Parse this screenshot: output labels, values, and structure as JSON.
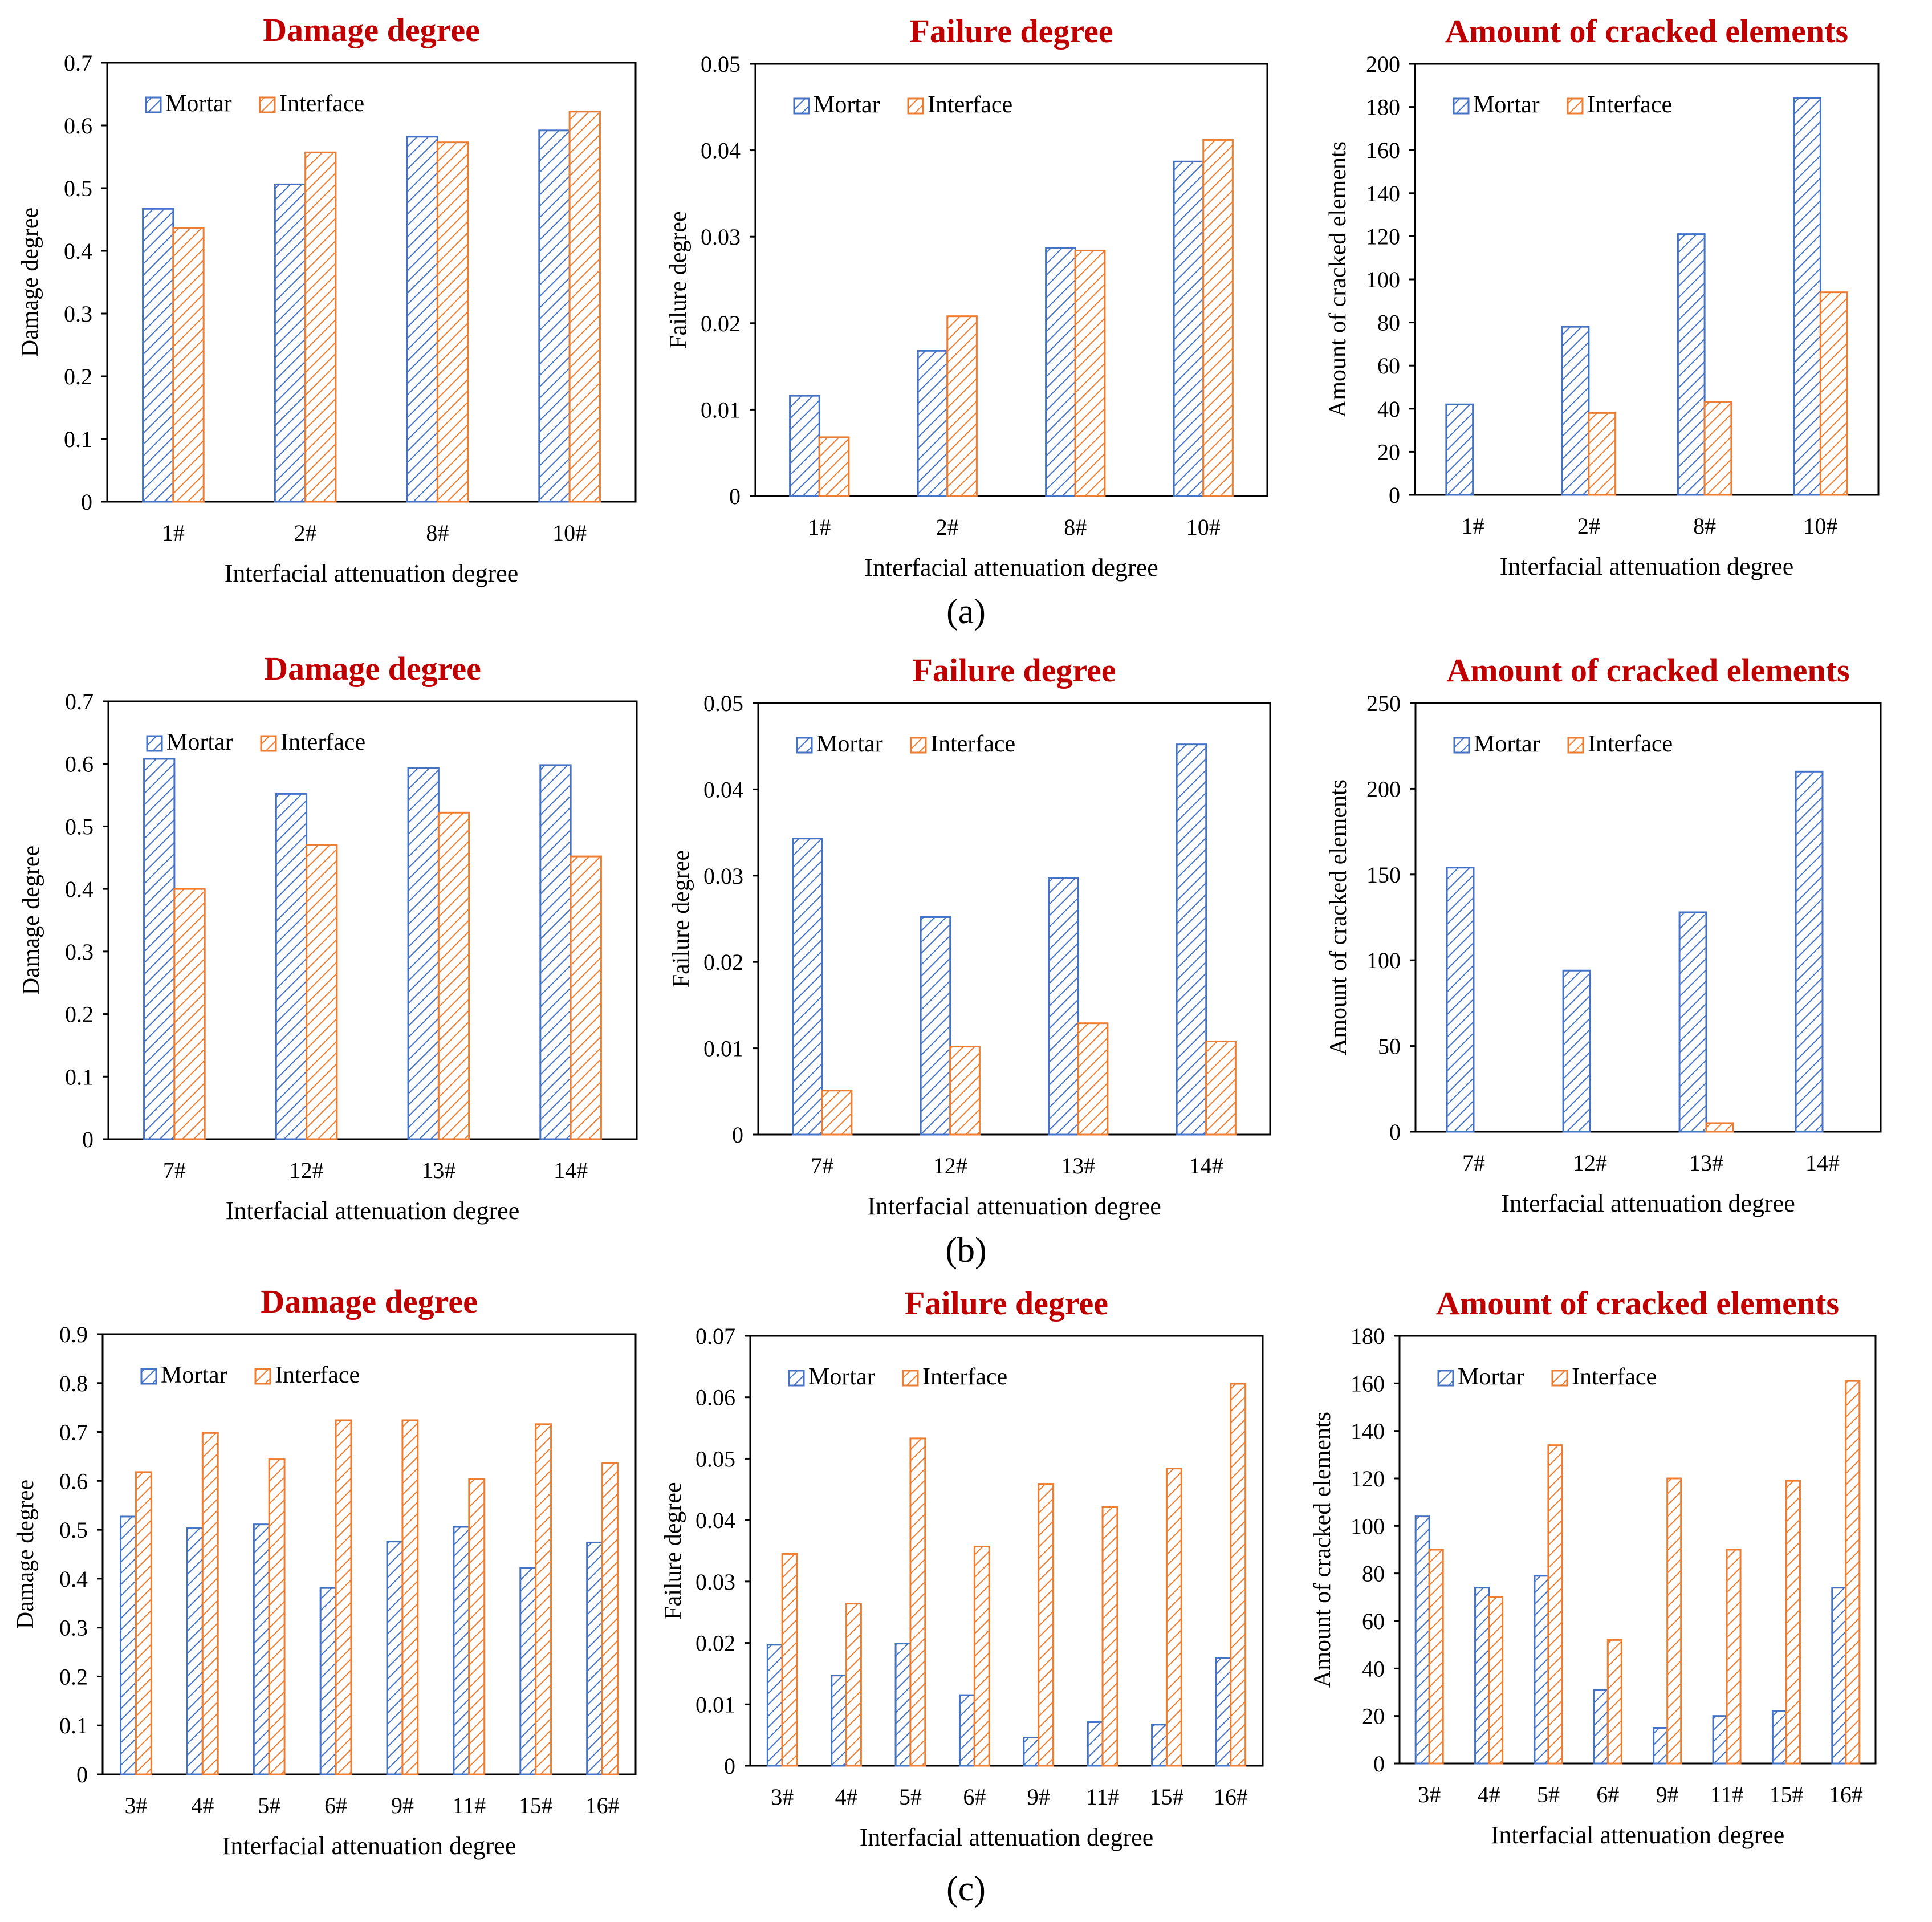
{
  "colors": {
    "mortar": "#4472C4",
    "interface": "#ED7D31",
    "title": "#C00000",
    "axis": "#000000"
  },
  "figure": {
    "rows": [
      {
        "label": "(a)",
        "charts": [
          0,
          1,
          2
        ]
      },
      {
        "label": "(b)",
        "charts": [
          3,
          4,
          5
        ]
      },
      {
        "label": "(c)",
        "charts": [
          6,
          7,
          8
        ]
      }
    ]
  },
  "chart_data": [
    {
      "type": "bar",
      "title": "Damage degree",
      "xlabel": "Interfacial attenuation degree",
      "ylabel": "Damage degree",
      "categories": [
        "1#",
        "2#",
        "8#",
        "10#"
      ],
      "ylim": [
        0,
        0.7
      ],
      "yticks": [
        "0",
        "0.1",
        "0.2",
        "0.3",
        "0.4",
        "0.5",
        "0.6",
        "0.7"
      ],
      "legend": "top-left",
      "series": [
        {
          "name": "Mortar",
          "values": [
            0.467,
            0.506,
            0.582,
            0.592
          ]
        },
        {
          "name": "Interface",
          "values": [
            0.436,
            0.557,
            0.573,
            0.622
          ]
        }
      ]
    },
    {
      "type": "bar",
      "title": "Failure degree",
      "xlabel": "Interfacial attenuation degree",
      "ylabel": "Failure degree",
      "categories": [
        "1#",
        "2#",
        "8#",
        "10#"
      ],
      "ylim": [
        0,
        0.05
      ],
      "yticks": [
        "0",
        "0.01",
        "0.02",
        "0.03",
        "0.04",
        "0.05"
      ],
      "legend": "top-left",
      "series": [
        {
          "name": "Mortar",
          "values": [
            0.0116,
            0.0168,
            0.0287,
            0.0387
          ]
        },
        {
          "name": "Interface",
          "values": [
            0.0068,
            0.0208,
            0.0284,
            0.0412
          ]
        }
      ]
    },
    {
      "type": "bar",
      "title": "Amount of cracked elements",
      "xlabel": "Interfacial attenuation degree",
      "ylabel": "Amount of cracked elements",
      "categories": [
        "1#",
        "2#",
        "8#",
        "10#"
      ],
      "ylim": [
        0,
        200
      ],
      "yticks": [
        "0",
        "20",
        "40",
        "60",
        "80",
        "100",
        "120",
        "140",
        "160",
        "180",
        "200"
      ],
      "legend": "top-left",
      "series": [
        {
          "name": "Mortar",
          "values": [
            42,
            78,
            121,
            184
          ]
        },
        {
          "name": "Interface",
          "values": [
            0,
            38,
            43,
            94
          ]
        }
      ]
    },
    {
      "type": "bar",
      "title": "Damage degree",
      "xlabel": "Interfacial attenuation degree",
      "ylabel": "Damage degree",
      "categories": [
        "7#",
        "12#",
        "13#",
        "14#"
      ],
      "ylim": [
        0,
        0.7
      ],
      "yticks": [
        "0",
        "0.1",
        "0.2",
        "0.3",
        "0.4",
        "0.5",
        "0.6",
        "0.7"
      ],
      "legend": "top-left",
      "series": [
        {
          "name": "Mortar",
          "values": [
            0.608,
            0.552,
            0.593,
            0.598
          ]
        },
        {
          "name": "Interface",
          "values": [
            0.4,
            0.47,
            0.522,
            0.452
          ]
        }
      ]
    },
    {
      "type": "bar",
      "title": "Failure degree",
      "xlabel": "Interfacial attenuation degree",
      "ylabel": "Failure degree",
      "categories": [
        "7#",
        "12#",
        "13#",
        "14#"
      ],
      "ylim": [
        0,
        0.05
      ],
      "yticks": [
        "0",
        "0.01",
        "0.02",
        "0.03",
        "0.04",
        "0.05"
      ],
      "legend": "top-left",
      "series": [
        {
          "name": "Mortar",
          "values": [
            0.0343,
            0.0252,
            0.0297,
            0.0452
          ]
        },
        {
          "name": "Interface",
          "values": [
            0.0051,
            0.0102,
            0.0129,
            0.0108
          ]
        }
      ]
    },
    {
      "type": "bar",
      "title": "Amount of cracked elements",
      "xlabel": "Interfacial attenuation degree",
      "ylabel": "Amount of cracked elements",
      "categories": [
        "7#",
        "12#",
        "13#",
        "14#"
      ],
      "ylim": [
        0,
        250
      ],
      "yticks": [
        "0",
        "50",
        "100",
        "150",
        "200",
        "250"
      ],
      "legend": "top-left",
      "series": [
        {
          "name": "Mortar",
          "values": [
            154,
            94,
            128,
            210
          ]
        },
        {
          "name": "Interface",
          "values": [
            0,
            0,
            5,
            0
          ]
        }
      ]
    },
    {
      "type": "bar",
      "title": "Damage degree",
      "xlabel": "Interfacial attenuation degree",
      "ylabel": "Damage degree",
      "categories": [
        "3#",
        "4#",
        "5#",
        "6#",
        "9#",
        "11#",
        "15#",
        "16#"
      ],
      "ylim": [
        0,
        0.9
      ],
      "yticks": [
        "0",
        "0.1",
        "0.2",
        "0.3",
        "0.4",
        "0.5",
        "0.6",
        "0.7",
        "0.8",
        "0.9"
      ],
      "legend": "top-left",
      "series": [
        {
          "name": "Mortar",
          "values": [
            0.527,
            0.503,
            0.511,
            0.381,
            0.476,
            0.506,
            0.422,
            0.474
          ]
        },
        {
          "name": "Interface",
          "values": [
            0.618,
            0.698,
            0.644,
            0.724,
            0.724,
            0.604,
            0.716,
            0.636
          ]
        }
      ]
    },
    {
      "type": "bar",
      "title": "Failure degree",
      "xlabel": "Interfacial attenuation degree",
      "ylabel": "Failure degree",
      "categories": [
        "3#",
        "4#",
        "5#",
        "6#",
        "9#",
        "11#",
        "15#",
        "16#"
      ],
      "ylim": [
        0,
        0.07
      ],
      "yticks": [
        "0",
        "0.01",
        "0.02",
        "0.03",
        "0.04",
        "0.05",
        "0.06",
        "0.07"
      ],
      "legend": "top-left",
      "series": [
        {
          "name": "Mortar",
          "values": [
            0.0197,
            0.0147,
            0.0199,
            0.0115,
            0.0046,
            0.0071,
            0.0067,
            0.0175
          ]
        },
        {
          "name": "Interface",
          "values": [
            0.0345,
            0.0264,
            0.0533,
            0.0357,
            0.0459,
            0.0421,
            0.0484,
            0.0622
          ]
        }
      ]
    },
    {
      "type": "bar",
      "title": "Amount of cracked elements",
      "xlabel": "Interfacial attenuation degree",
      "ylabel": "Amount of cracked elements",
      "categories": [
        "3#",
        "4#",
        "5#",
        "6#",
        "9#",
        "11#",
        "15#",
        "16#"
      ],
      "ylim": [
        0,
        180
      ],
      "yticks": [
        "0",
        "20",
        "40",
        "60",
        "80",
        "100",
        "120",
        "140",
        "160",
        "180"
      ],
      "legend": "top-left",
      "series": [
        {
          "name": "Mortar",
          "values": [
            104,
            74,
            79,
            31,
            15,
            20,
            22,
            74
          ]
        },
        {
          "name": "Interface",
          "values": [
            90,
            70,
            134,
            52,
            120,
            90,
            119,
            161
          ]
        }
      ]
    }
  ]
}
